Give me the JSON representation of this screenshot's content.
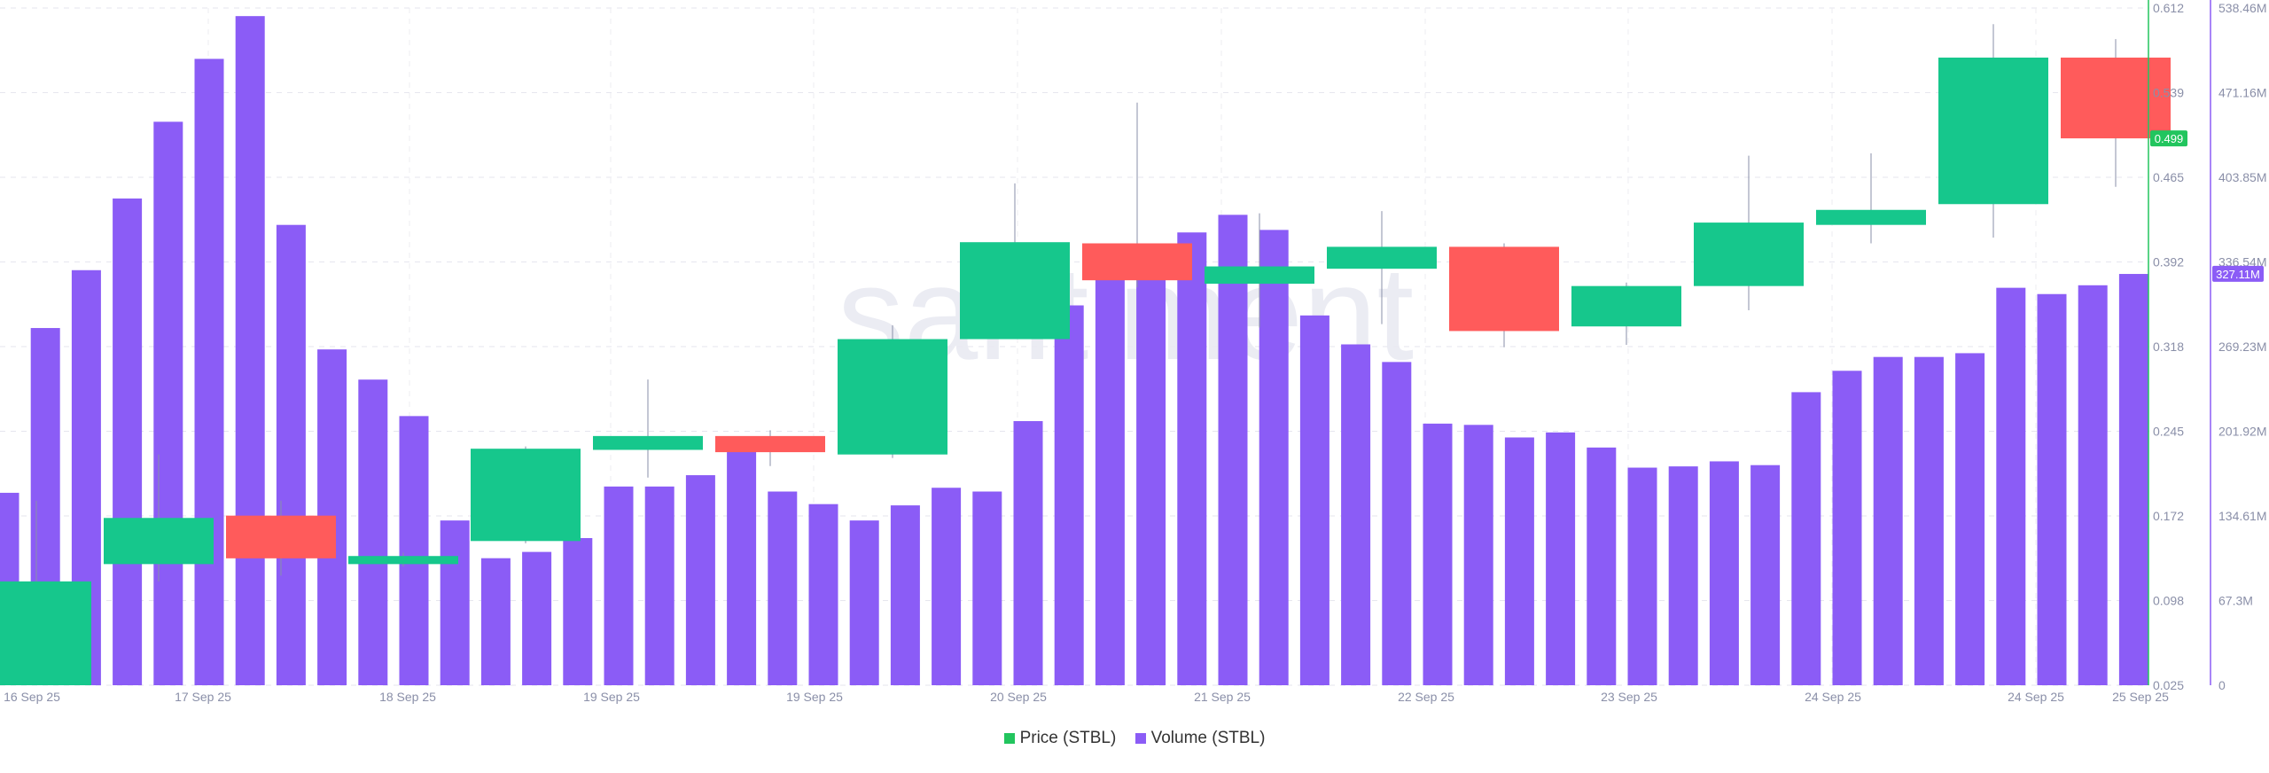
{
  "watermark": "santiment",
  "legend": {
    "price_label": "Price (STBL)",
    "volume_label": "Volume (STBL)"
  },
  "colors": {
    "up": "#16c78c",
    "down": "#ff5b5b",
    "volume": "#8b5cf6",
    "price_axis": "#22c55e",
    "volume_axis": "#8b5cf6",
    "price_tag_bg": "#22c55e",
    "volume_tag_bg": "#8b5cf6"
  },
  "axes": {
    "price_ticks": [
      "0.025",
      "0.098",
      "0.172",
      "0.245",
      "0.318",
      "0.392",
      "0.465",
      "0.539",
      "0.612"
    ],
    "volume_ticks": [
      "0",
      "67.3M",
      "134.61M",
      "201.92M",
      "269.23M",
      "336.54M",
      "403.85M",
      "471.16M",
      "538.46M"
    ],
    "x_ticks": [
      "16 Sep 25",
      "17 Sep 25",
      "18 Sep 25",
      "19 Sep 25",
      "19 Sep 25",
      "20 Sep 25",
      "21 Sep 25",
      "22 Sep 25",
      "23 Sep 25",
      "24 Sep 25",
      "24 Sep 25",
      "25 Sep 25"
    ]
  },
  "current": {
    "price_tag": "0.499",
    "volume_tag": "327.11M"
  },
  "chart_data": {
    "type": "candlestick+bar",
    "price_range": [
      0.025,
      0.612
    ],
    "volume_range": [
      0,
      538.46
    ],
    "volume_unit": "M",
    "grid": true,
    "legend_position": "bottom-center",
    "candles": [
      {
        "open": 0.025,
        "close": 0.115,
        "high": 0.185,
        "low": 0.025
      },
      {
        "open": 0.13,
        "close": 0.17,
        "high": 0.225,
        "low": 0.115
      },
      {
        "open": 0.172,
        "close": 0.135,
        "high": 0.185,
        "low": 0.12
      },
      {
        "open": 0.13,
        "close": 0.137,
        "high": 0.14,
        "low": 0.128
      },
      {
        "open": 0.15,
        "close": 0.23,
        "high": 0.232,
        "low": 0.148
      },
      {
        "open": 0.229,
        "close": 0.241,
        "high": 0.29,
        "low": 0.205
      },
      {
        "open": 0.241,
        "close": 0.227,
        "high": 0.246,
        "low": 0.215
      },
      {
        "open": 0.225,
        "close": 0.325,
        "high": 0.337,
        "low": 0.222
      },
      {
        "open": 0.325,
        "close": 0.409,
        "high": 0.46,
        "low": 0.325
      },
      {
        "open": 0.408,
        "close": 0.376,
        "high": 0.53,
        "low": 0.37
      },
      {
        "open": 0.373,
        "close": 0.388,
        "high": 0.434,
        "low": 0.335
      },
      {
        "open": 0.386,
        "close": 0.405,
        "high": 0.436,
        "low": 0.338
      },
      {
        "open": 0.405,
        "close": 0.332,
        "high": 0.408,
        "low": 0.318
      },
      {
        "open": 0.336,
        "close": 0.371,
        "high": 0.374,
        "low": 0.32
      },
      {
        "open": 0.371,
        "close": 0.426,
        "high": 0.484,
        "low": 0.35
      },
      {
        "open": 0.424,
        "close": 0.437,
        "high": 0.486,
        "low": 0.408
      },
      {
        "open": 0.442,
        "close": 0.569,
        "high": 0.598,
        "low": 0.413
      },
      {
        "open": 0.569,
        "close": 0.499,
        "high": 0.585,
        "low": 0.457
      }
    ],
    "volumes": [
      153,
      284,
      330,
      387,
      448,
      498,
      532,
      366,
      267,
      243,
      214,
      131,
      101,
      106,
      117,
      158,
      158,
      167,
      198,
      154,
      144,
      131,
      143,
      157,
      154,
      210,
      302,
      327,
      342,
      360,
      374,
      362,
      294,
      271,
      257,
      208,
      207,
      197,
      201,
      189,
      173,
      174,
      178,
      175,
      233,
      250,
      261,
      261,
      264,
      316,
      311,
      318,
      327
    ]
  }
}
